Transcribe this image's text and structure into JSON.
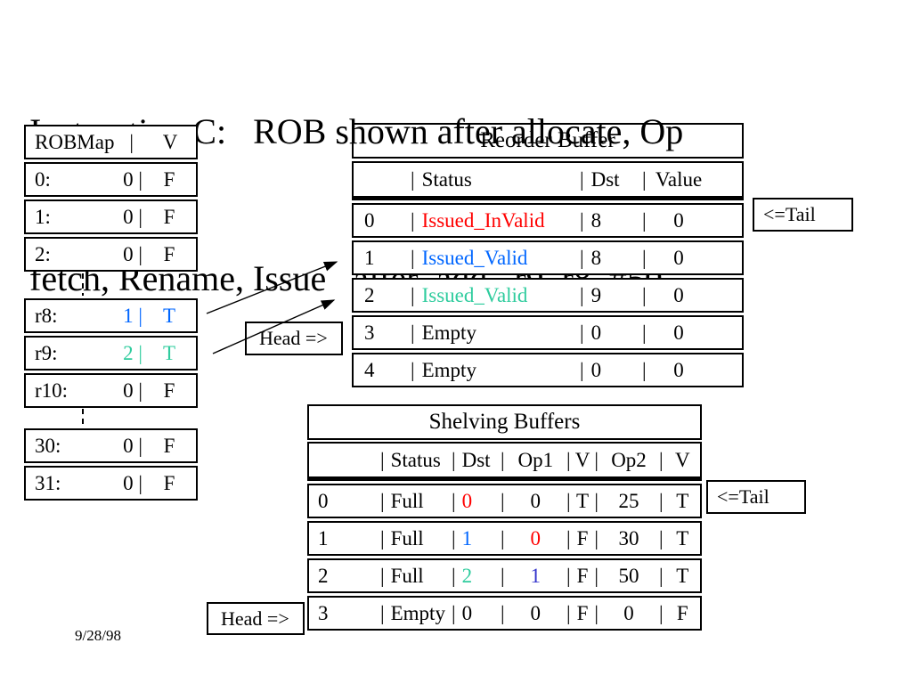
{
  "colors": {
    "red": "#ff0000",
    "blue": "#0066ff",
    "teal": "#2fcc9e",
    "darkblue": "#3333cc",
    "black": "#000000"
  },
  "title": {
    "line1": "Instruction C:   ROB shown after allocate, Op",
    "line2": "fetch, Rename, Issue   after  add   r9, r8, #50"
  },
  "date": "9/28/98",
  "pointers": {
    "head": "Head =>",
    "tail": "<=Tail"
  },
  "robmap": {
    "header": {
      "name": "ROBMap",
      "sep": "|",
      "v": "V"
    },
    "groups": [
      {
        "rows": [
          {
            "reg": "0:",
            "val": "0 |",
            "flag": "F",
            "c": "black"
          },
          {
            "reg": "1:",
            "val": "0 |",
            "flag": "F",
            "c": "black"
          },
          {
            "reg": "2:",
            "val": "0 |",
            "flag": "F",
            "c": "black"
          }
        ]
      },
      {
        "rows": [
          {
            "reg": "r8:",
            "val": "1 |",
            "flag": "T",
            "c": "blue"
          },
          {
            "reg": "r9:",
            "val": "2 |",
            "flag": "T",
            "c": "teal"
          },
          {
            "reg": "r10:",
            "val": "0 |",
            "flag": "F",
            "c": "black"
          }
        ]
      },
      {
        "rows": [
          {
            "reg": "30:",
            "val": "0 |",
            "flag": "F",
            "c": "black"
          },
          {
            "reg": "31:",
            "val": "0 |",
            "flag": "F",
            "c": "black"
          }
        ]
      }
    ]
  },
  "rob": {
    "title": "Reorder Buffer",
    "header": [
      {
        "t": ""
      },
      {
        "pre": "|",
        "t": "Status"
      },
      {
        "pre": "|",
        "t": "Dst"
      },
      {
        "t": "|"
      },
      {
        "t": "Value"
      }
    ],
    "rows": [
      [
        {
          "t": "0"
        },
        {
          "pre": "|",
          "t": "Issued_InValid",
          "c": "red"
        },
        {
          "pre": "|",
          "t": "8"
        },
        {
          "t": "|"
        },
        {
          "t": "0"
        }
      ],
      [
        {
          "t": "1"
        },
        {
          "pre": "|",
          "t": "Issued_Valid",
          "c": "blue"
        },
        {
          "pre": "|",
          "t": "8"
        },
        {
          "t": "|"
        },
        {
          "t": "0"
        }
      ],
      [
        {
          "t": "2"
        },
        {
          "pre": "|",
          "t": "Issued_Valid",
          "c": "teal"
        },
        {
          "pre": "|",
          "t": "9"
        },
        {
          "t": "|"
        },
        {
          "t": "0"
        }
      ],
      [
        {
          "t": "3"
        },
        {
          "pre": "|",
          "t": "Empty"
        },
        {
          "pre": "|",
          "t": "0"
        },
        {
          "t": "|"
        },
        {
          "t": "0"
        }
      ],
      [
        {
          "t": "4"
        },
        {
          "pre": "|",
          "t": "Empty"
        },
        {
          "pre": "|",
          "t": "0"
        },
        {
          "t": "|"
        },
        {
          "t": "0"
        }
      ]
    ]
  },
  "shelf": {
    "title": "Shelving Buffers",
    "header": [
      {
        "t": ""
      },
      {
        "pre": "|",
        "t": "Status"
      },
      {
        "pre": "|",
        "t": "Dst"
      },
      {
        "pre": "|",
        "t": "Op1"
      },
      {
        "pre": "|",
        "t": "V",
        "post": "|"
      },
      {
        "t": "Op2"
      },
      {
        "pre": "|",
        "t": "V"
      }
    ],
    "rows": [
      [
        {
          "t": "0"
        },
        {
          "pre": "|",
          "t": "Full"
        },
        {
          "pre": "|",
          "t": "0",
          "c": "red"
        },
        {
          "pre": "|",
          "t": "0"
        },
        {
          "pre": "|",
          "t": "T",
          "post": "|"
        },
        {
          "t": "25"
        },
        {
          "pre": "|",
          "t": "T"
        }
      ],
      [
        {
          "t": "1"
        },
        {
          "pre": "|",
          "t": "Full"
        },
        {
          "pre": "|",
          "t": "1",
          "c": "blue"
        },
        {
          "pre": "|",
          "t": "0",
          "c": "red"
        },
        {
          "pre": "|",
          "t": "F",
          "post": "|"
        },
        {
          "t": "30"
        },
        {
          "pre": "|",
          "t": "T"
        }
      ],
      [
        {
          "t": "2"
        },
        {
          "pre": "|",
          "t": "Full"
        },
        {
          "pre": "|",
          "t": "2",
          "c": "teal"
        },
        {
          "pre": "|",
          "t": "1",
          "c": "darkblue"
        },
        {
          "pre": "|",
          "t": "F",
          "post": "|"
        },
        {
          "t": "50"
        },
        {
          "pre": "|",
          "t": "T"
        }
      ],
      [
        {
          "t": "3"
        },
        {
          "pre": "|",
          "t": "Empty"
        },
        {
          "pre": "|",
          "t": "0"
        },
        {
          "pre": "|",
          "t": "0"
        },
        {
          "pre": "|",
          "t": "F",
          "post": "|"
        },
        {
          "t": "0"
        },
        {
          "pre": "|",
          "t": "F"
        }
      ]
    ]
  }
}
